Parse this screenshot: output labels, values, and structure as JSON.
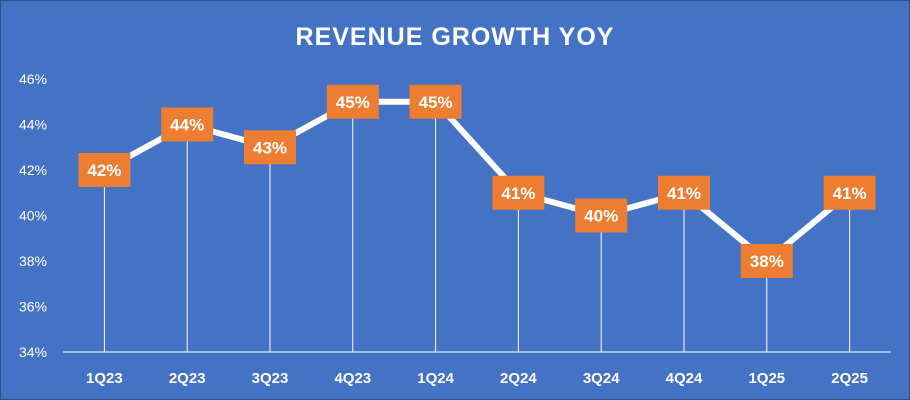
{
  "chart_data": {
    "type": "line",
    "title": "REVENUE GROWTH YOY",
    "xlabel": "",
    "ylabel": "",
    "categories": [
      "1Q23",
      "2Q23",
      "3Q23",
      "4Q23",
      "1Q24",
      "2Q24",
      "3Q24",
      "4Q24",
      "1Q25",
      "2Q25"
    ],
    "series": [
      {
        "name": "Revenue Growth YoY",
        "values": [
          42,
          44,
          43,
          45,
          45,
          41,
          40,
          41,
          38,
          41
        ],
        "labels": [
          "42%",
          "44%",
          "43%",
          "45%",
          "45%",
          "41%",
          "40%",
          "41%",
          "38%",
          "41%"
        ]
      }
    ],
    "ylim": [
      34,
      46
    ],
    "yticks": [
      34,
      36,
      38,
      40,
      42,
      44,
      46
    ],
    "ytick_labels": [
      "34%",
      "36%",
      "38%",
      "40%",
      "42%",
      "44%",
      "46%"
    ],
    "gridlines": false,
    "drop_lines": true,
    "legend": "none"
  },
  "colors": {
    "background": "#4472c4",
    "line": "#ffffff",
    "label_fill": "#ed7d31",
    "text": "#ffffff",
    "axis": "#ffffff"
  }
}
